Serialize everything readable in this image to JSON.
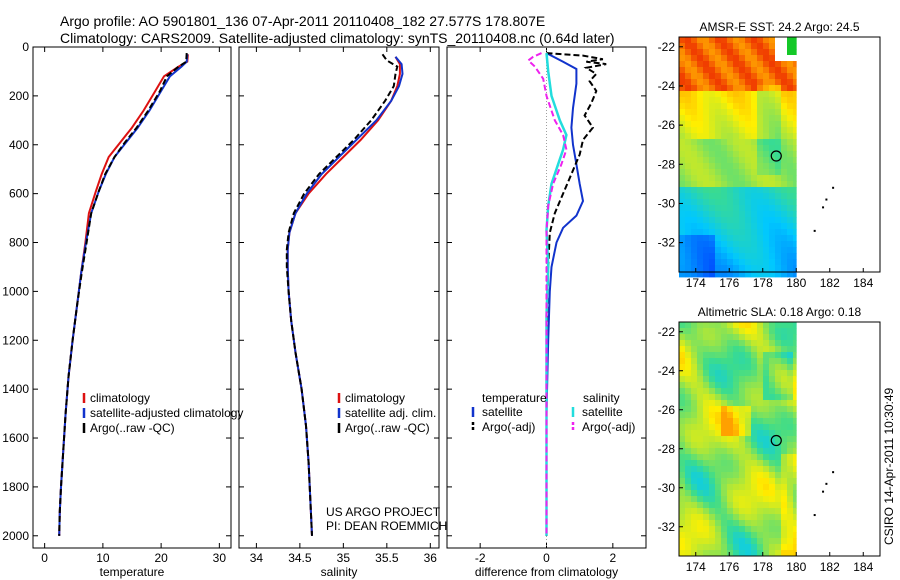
{
  "header": {
    "line1": "Argo profile: AO 5901801_136 07-Apr-2011 20110408_182 27.577S 178.807E",
    "line2": "Climatology: CARS2009. Satellite-adjusted climatology: synTS_20110408.nc (0.64d later)"
  },
  "side_label": "CSIRO 14-Apr-2011 10:30:49",
  "colors": {
    "red": "#dd1111",
    "blue": "#1133cc",
    "black": "#000000",
    "cyan": "#22dddd",
    "magenta": "#ee22ee"
  },
  "chart_data": [
    {
      "type": "line",
      "id": "temperature",
      "xlabel": "temperature",
      "xlim": [
        -2,
        32
      ],
      "ylim": [
        2050,
        0
      ],
      "xticks": [
        0,
        10,
        20,
        30
      ],
      "yticks": [
        0,
        200,
        400,
        600,
        800,
        1000,
        1200,
        1400,
        1600,
        1800,
        2000
      ],
      "legend": [
        "climatology",
        "satellite-adjusted climatology",
        "Argo(..raw -QC)"
      ],
      "series": [
        {
          "name": "climatology",
          "color": "red",
          "style": "solid",
          "points": [
            [
              24.6,
              30
            ],
            [
              24.5,
              60
            ],
            [
              23,
              80
            ],
            [
              20.5,
              120
            ],
            [
              19,
              180
            ],
            [
              17,
              260
            ],
            [
              15,
              330
            ],
            [
              13,
              390
            ],
            [
              11,
              450
            ],
            [
              9.8,
              520
            ],
            [
              8.8,
              590
            ],
            [
              7.6,
              680
            ],
            [
              7,
              800
            ],
            [
              6.3,
              920
            ],
            [
              5.6,
              1050
            ],
            [
              4.8,
              1200
            ],
            [
              4.1,
              1350
            ],
            [
              3.6,
              1500
            ],
            [
              3.2,
              1650
            ],
            [
              2.8,
              1800
            ],
            [
              2.6,
              1900
            ],
            [
              2.5,
              2000
            ]
          ]
        },
        {
          "name": "satellite-adjusted climatology",
          "color": "blue",
          "style": "solid",
          "points": [
            [
              24.5,
              30
            ],
            [
              24.4,
              60
            ],
            [
              23.5,
              80
            ],
            [
              21.5,
              120
            ],
            [
              20,
              180
            ],
            [
              18,
              260
            ],
            [
              16,
              330
            ],
            [
              14,
              390
            ],
            [
              12,
              450
            ],
            [
              10.5,
              520
            ],
            [
              9.3,
              590
            ],
            [
              8,
              680
            ],
            [
              7.1,
              800
            ],
            [
              6.3,
              920
            ],
            [
              5.6,
              1050
            ],
            [
              4.8,
              1200
            ],
            [
              4.1,
              1350
            ],
            [
              3.6,
              1500
            ],
            [
              3.2,
              1650
            ],
            [
              2.8,
              1800
            ],
            [
              2.6,
              1900
            ],
            [
              2.5,
              2000
            ]
          ]
        },
        {
          "name": "Argo(..raw -QC)",
          "color": "black",
          "style": "dashed",
          "points": [
            [
              24.4,
              25
            ],
            [
              24.3,
              60
            ],
            [
              23,
              80
            ],
            [
              21,
              120
            ],
            [
              19.8,
              180
            ],
            [
              17.8,
              260
            ],
            [
              15.8,
              330
            ],
            [
              13.8,
              390
            ],
            [
              12,
              450
            ],
            [
              10.4,
              520
            ],
            [
              9.3,
              590
            ],
            [
              8,
              680
            ],
            [
              7.2,
              800
            ],
            [
              6.4,
              920
            ],
            [
              5.6,
              1050
            ],
            [
              4.8,
              1200
            ],
            [
              4.1,
              1350
            ],
            [
              3.6,
              1500
            ],
            [
              3.2,
              1650
            ],
            [
              2.8,
              1800
            ],
            [
              2.6,
              1900
            ],
            [
              2.5,
              2000
            ]
          ]
        }
      ]
    },
    {
      "type": "line",
      "id": "salinity",
      "xlabel": "salinity",
      "xlim": [
        33.8,
        36.1
      ],
      "ylim": [
        2050,
        0
      ],
      "xticks": [
        34,
        34.5,
        35,
        35.5,
        36
      ],
      "legend": [
        "climatology",
        "satellite adj. clim.",
        "Argo(..raw -QC)"
      ],
      "footer": [
        "US ARGO PROJECT",
        "PI: DEAN ROEMMICH"
      ],
      "series": [
        {
          "name": "climatology",
          "color": "red",
          "style": "solid",
          "points": [
            [
              35.6,
              40
            ],
            [
              35.65,
              70
            ],
            [
              35.65,
              110
            ],
            [
              35.62,
              160
            ],
            [
              35.55,
              220
            ],
            [
              35.4,
              300
            ],
            [
              35.2,
              380
            ],
            [
              35.0,
              450
            ],
            [
              34.8,
              520
            ],
            [
              34.6,
              600
            ],
            [
              34.45,
              680
            ],
            [
              34.38,
              760
            ],
            [
              34.36,
              830
            ],
            [
              34.36,
              900
            ],
            [
              34.37,
              1000
            ],
            [
              34.4,
              1120
            ],
            [
              34.45,
              1250
            ],
            [
              34.52,
              1400
            ],
            [
              34.57,
              1550
            ],
            [
              34.6,
              1700
            ],
            [
              34.62,
              1850
            ],
            [
              34.64,
              2000
            ]
          ]
        },
        {
          "name": "satellite adj. clim.",
          "color": "blue",
          "style": "solid",
          "points": [
            [
              35.6,
              40
            ],
            [
              35.67,
              70
            ],
            [
              35.68,
              110
            ],
            [
              35.64,
              160
            ],
            [
              35.55,
              220
            ],
            [
              35.38,
              300
            ],
            [
              35.15,
              380
            ],
            [
              34.95,
              450
            ],
            [
              34.75,
              520
            ],
            [
              34.58,
              600
            ],
            [
              34.45,
              680
            ],
            [
              34.38,
              760
            ],
            [
              34.36,
              830
            ],
            [
              34.36,
              900
            ],
            [
              34.37,
              1000
            ],
            [
              34.4,
              1120
            ],
            [
              34.45,
              1250
            ],
            [
              34.52,
              1400
            ],
            [
              34.57,
              1550
            ],
            [
              34.6,
              1700
            ],
            [
              34.62,
              1850
            ],
            [
              34.64,
              2000
            ]
          ]
        },
        {
          "name": "Argo(..raw -QC)",
          "color": "black",
          "style": "dashed",
          "points": [
            [
              35.45,
              30
            ],
            [
              35.5,
              55
            ],
            [
              35.62,
              80
            ],
            [
              35.6,
              110
            ],
            [
              35.58,
              160
            ],
            [
              35.48,
              220
            ],
            [
              35.32,
              300
            ],
            [
              35.12,
              380
            ],
            [
              34.92,
              450
            ],
            [
              34.72,
              520
            ],
            [
              34.55,
              600
            ],
            [
              34.43,
              680
            ],
            [
              34.37,
              760
            ],
            [
              34.35,
              830
            ],
            [
              34.35,
              900
            ],
            [
              34.37,
              1000
            ],
            [
              34.4,
              1120
            ],
            [
              34.45,
              1250
            ],
            [
              34.52,
              1400
            ],
            [
              34.57,
              1550
            ],
            [
              34.6,
              1700
            ],
            [
              34.62,
              1850
            ],
            [
              34.64,
              2000
            ]
          ]
        }
      ]
    },
    {
      "type": "line",
      "id": "difference",
      "xlabel": "difference from climatology",
      "xlim": [
        -3,
        3
      ],
      "ylim": [
        2050,
        0
      ],
      "xticks": [
        -2,
        0,
        2
      ],
      "legend": {
        "temperature": [
          "temperature",
          "satellite",
          "Argo(-adj)"
        ],
        "salinity": [
          "salinity",
          "satellite",
          "Argo(-adj)"
        ]
      },
      "series": [
        {
          "name": "temperature satellite",
          "color": "blue",
          "style": "solid",
          "points": [
            [
              0,
              25
            ],
            [
              0.5,
              60
            ],
            [
              0.9,
              90
            ],
            [
              0.9,
              150
            ],
            [
              0.8,
              250
            ],
            [
              0.75,
              330
            ],
            [
              0.8,
              400
            ],
            [
              0.9,
              480
            ],
            [
              1.0,
              560
            ],
            [
              1.1,
              630
            ],
            [
              0.9,
              690
            ],
            [
              0.5,
              740
            ],
            [
              0.3,
              800
            ],
            [
              0.15,
              900
            ],
            [
              0.1,
              1000
            ],
            [
              0.05,
              1200
            ],
            [
              0,
              1500
            ],
            [
              0,
              2000
            ]
          ]
        },
        {
          "name": "temperature Argo(-adj)",
          "color": "black",
          "style": "dashed",
          "points": [
            [
              0,
              25
            ],
            [
              1.1,
              35
            ],
            [
              1.7,
              50
            ],
            [
              1.2,
              60
            ],
            [
              1.8,
              70
            ],
            [
              1.2,
              85
            ],
            [
              1.5,
              110
            ],
            [
              1.3,
              140
            ],
            [
              1.5,
              180
            ],
            [
              1.35,
              230
            ],
            [
              1.15,
              280
            ],
            [
              1.4,
              330
            ],
            [
              1.1,
              380
            ],
            [
              1.0,
              440
            ],
            [
              0.75,
              520
            ],
            [
              0.5,
              600
            ],
            [
              0.25,
              680
            ],
            [
              0.1,
              760
            ],
            [
              0.05,
              900
            ],
            [
              0,
              1200
            ],
            [
              0,
              2000
            ]
          ]
        },
        {
          "name": "salinity satellite",
          "color": "cyan",
          "style": "solid",
          "points": [
            [
              0,
              25
            ],
            [
              0.05,
              100
            ],
            [
              0.15,
              200
            ],
            [
              0.4,
              300
            ],
            [
              0.6,
              360
            ],
            [
              0.5,
              420
            ],
            [
              0.35,
              480
            ],
            [
              0.15,
              560
            ],
            [
              0.05,
              650
            ],
            [
              0,
              750
            ],
            [
              0.05,
              900
            ],
            [
              0,
              1100
            ],
            [
              0,
              1500
            ],
            [
              0,
              2000
            ]
          ]
        },
        {
          "name": "salinity Argo(-adj)",
          "color": "magenta",
          "style": "dashed",
          "points": [
            [
              -0.15,
              25
            ],
            [
              -0.4,
              40
            ],
            [
              -0.55,
              55
            ],
            [
              -0.35,
              80
            ],
            [
              -0.1,
              130
            ],
            [
              0,
              200
            ],
            [
              0.25,
              300
            ],
            [
              0.5,
              360
            ],
            [
              0.6,
              420
            ],
            [
              0.45,
              480
            ],
            [
              0.2,
              560
            ],
            [
              0.05,
              650
            ],
            [
              0,
              750
            ],
            [
              0,
              900
            ],
            [
              0,
              1200
            ],
            [
              0,
              2000
            ]
          ]
        }
      ]
    },
    {
      "type": "heatmap",
      "id": "sst-map",
      "title": "AMSR-E SST: 24.2 Argo: 24.5",
      "xlim": [
        173,
        185
      ],
      "ylim": [
        -33.5,
        -21.5
      ],
      "xticks": [
        174,
        176,
        178,
        180,
        182,
        184
      ],
      "yticks": [
        -22,
        -24,
        -26,
        -28,
        -30,
        -32
      ],
      "argo_position": [
        178.807,
        -27.577
      ],
      "islands": [
        [
          182.2,
          -29.2
        ],
        [
          181.8,
          -29.8
        ],
        [
          181.6,
          -30.2
        ],
        [
          181.1,
          -31.4
        ]
      ]
    },
    {
      "type": "heatmap",
      "id": "sla-map",
      "title": "Altimetric SLA: 0.18 Argo: 0.18",
      "xlim": [
        173,
        185
      ],
      "ylim": [
        -33.5,
        -21.5
      ],
      "xticks": [
        174,
        176,
        178,
        180,
        182,
        184
      ],
      "yticks": [
        -22,
        -24,
        -26,
        -28,
        -30,
        -32
      ],
      "argo_position": [
        178.807,
        -27.577
      ],
      "islands": [
        [
          182.2,
          -29.2
        ],
        [
          181.8,
          -29.8
        ],
        [
          181.6,
          -30.2
        ],
        [
          181.1,
          -31.4
        ]
      ]
    }
  ]
}
